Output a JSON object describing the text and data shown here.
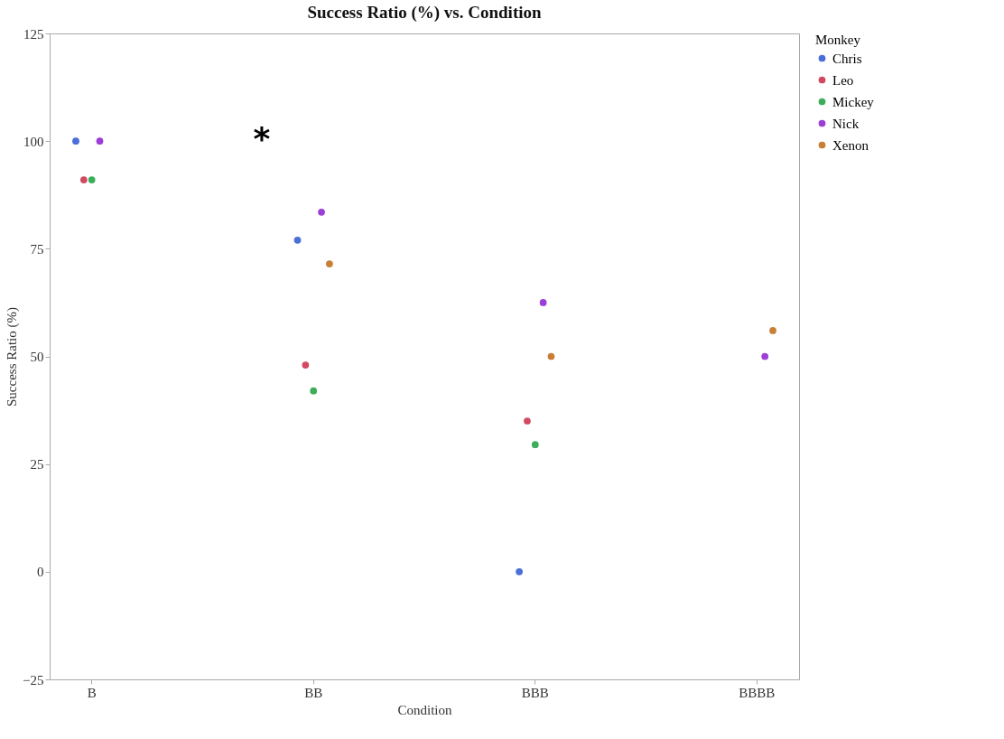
{
  "chart_data": {
    "type": "scatter",
    "title": "Success Ratio (%) vs. Condition",
    "xlabel": "Condition",
    "ylabel": "Success Ratio (%)",
    "legend_title": "Monkey",
    "categories": [
      "B",
      "BB",
      "BBB",
      "BBBB"
    ],
    "series": [
      {
        "name": "Chris",
        "color": "#4a6fd8",
        "values": [
          100,
          77,
          0,
          null
        ]
      },
      {
        "name": "Leo",
        "color": "#d04a60",
        "values": [
          91,
          48,
          35,
          null
        ]
      },
      {
        "name": "Mickey",
        "color": "#3cae5a",
        "values": [
          91,
          42,
          29.5,
          null
        ]
      },
      {
        "name": "Nick",
        "color": "#9b3fd8",
        "values": [
          100,
          83.5,
          62.5,
          50
        ]
      },
      {
        "name": "Xenon",
        "color": "#c87f35",
        "values": [
          null,
          71.5,
          50,
          56
        ]
      }
    ],
    "ylim": [
      -25,
      125
    ],
    "yticks": [
      -25,
      0,
      25,
      50,
      75,
      100,
      125
    ],
    "grid": false,
    "legend": "top right",
    "marker": "circle",
    "annotations": [
      "*"
    ]
  }
}
